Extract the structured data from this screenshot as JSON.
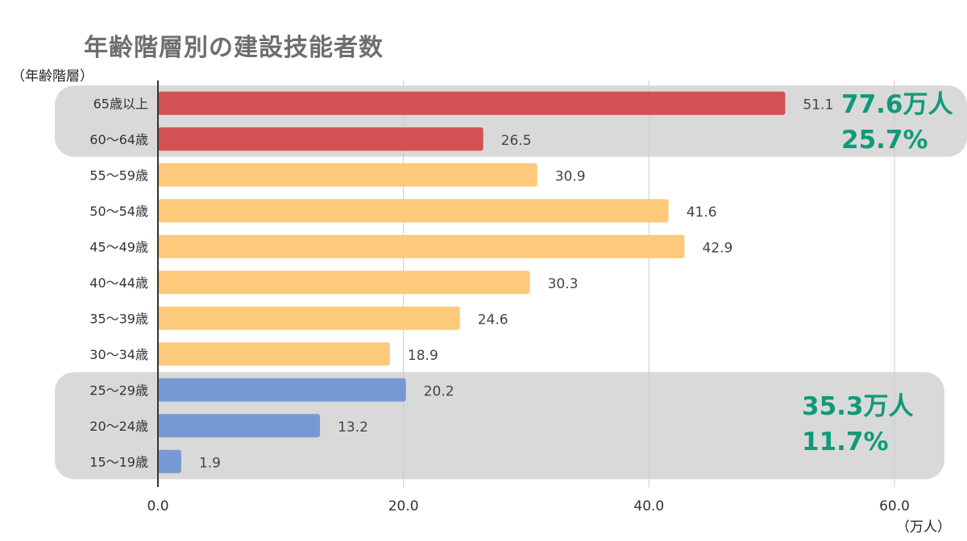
{
  "chart_data": {
    "type": "bar",
    "orientation": "horizontal",
    "title": "年齢階層別の建設技能者数",
    "ylabel": "（年齢階層）",
    "xlabel": "（万人）",
    "xlim": [
      0,
      60
    ],
    "xticks": [
      "0.0",
      "20.0",
      "40.0",
      "60.0"
    ],
    "grid": true,
    "categories": [
      "65歳以上",
      "60～64歳",
      "55～59歳",
      "50～54歳",
      "45～49歳",
      "40～44歳",
      "35～39歳",
      "30～34歳",
      "25～29歳",
      "20～24歳",
      "15～19歳"
    ],
    "values": [
      51.1,
      26.5,
      30.9,
      41.6,
      42.9,
      30.3,
      24.6,
      18.9,
      20.2,
      13.2,
      1.9
    ],
    "value_labels": [
      "51.1",
      "26.5",
      "30.9",
      "41.6",
      "42.9",
      "30.3",
      "24.6",
      "18.9",
      "20.2",
      "13.2",
      "1.9"
    ],
    "bar_colors": [
      "#d35152",
      "#d35152",
      "#fdc97b",
      "#fdc97b",
      "#fdc97b",
      "#fdc97b",
      "#fdc97b",
      "#fdc97b",
      "#7799d3",
      "#7799d3",
      "#7799d3"
    ],
    "highlight_color": "#d9d9d9",
    "annotations": {
      "top": {
        "line1": "77.6万人",
        "line2": "25.7%"
      },
      "bottom": {
        "line1": "35.3万人",
        "line2": "11.7%"
      }
    }
  }
}
